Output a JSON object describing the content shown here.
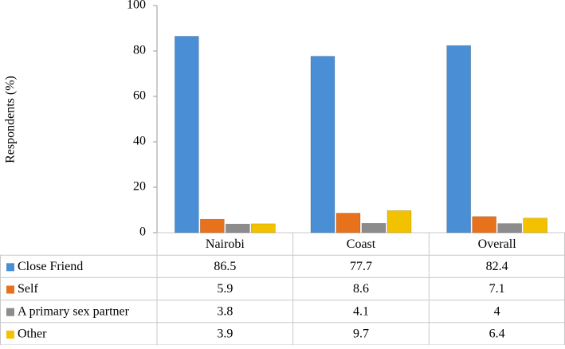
{
  "chart_data": {
    "type": "bar",
    "y_label": "Respondents (%)",
    "categories": [
      "Nairobi",
      "Coast",
      "Overall"
    ],
    "series": [
      {
        "name": "Close Friend",
        "color": "#4a8fd6",
        "values": [
          86.5,
          77.7,
          82.4
        ]
      },
      {
        "name": "Self",
        "color": "#e8711c",
        "values": [
          5.9,
          8.6,
          7.1
        ]
      },
      {
        "name": "A primary sex partner",
        "color": "#8c8c8c",
        "values": [
          3.8,
          4.1,
          4
        ]
      },
      {
        "name": "Other",
        "color": "#f2c200",
        "values": [
          3.9,
          9.7,
          6.4
        ]
      }
    ],
    "ylim": [
      0,
      100
    ],
    "yticks": [
      0,
      20,
      40,
      60,
      80,
      100
    ],
    "grid": false
  }
}
